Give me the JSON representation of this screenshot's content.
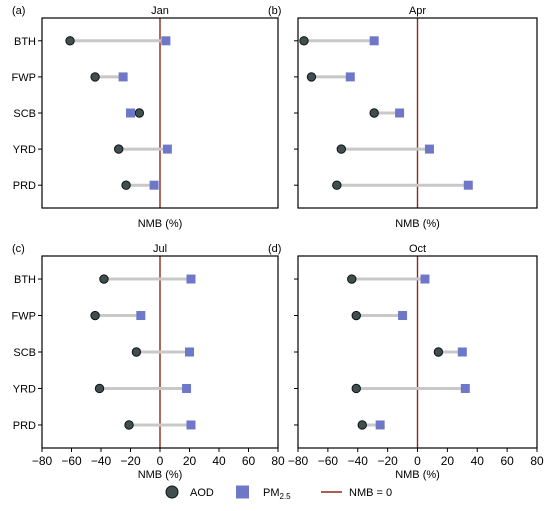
{
  "chart_data": {
    "type": "dumbbell",
    "categories": [
      "BTH",
      "FWP",
      "SCB",
      "YRD",
      "PRD"
    ],
    "xlim": [
      -80,
      80
    ],
    "xticks": [
      -80,
      -60,
      -40,
      -20,
      0,
      20,
      40,
      60,
      80
    ],
    "xlabel": "NMB (%)",
    "reference_line": 0,
    "colors": {
      "aod": "#3f4f4f",
      "aod_edge": "#111111",
      "pm": "#6f77c8",
      "connector": "#c8c8c8",
      "ref": "#8b2c1a"
    },
    "panels": [
      {
        "label": "(a)",
        "title": "Jan",
        "aod": [
          -61,
          -44,
          -14,
          -28,
          -23
        ],
        "pm": [
          4,
          -25,
          -20,
          5,
          -4
        ]
      },
      {
        "label": "(b)",
        "title": "Apr",
        "aod": [
          -76,
          -71,
          -29,
          -51,
          -54
        ],
        "pm": [
          -29,
          -45,
          -12,
          8,
          34
        ]
      },
      {
        "label": "(c)",
        "title": "Jul",
        "aod": [
          -38,
          -44,
          -16,
          -41,
          -21
        ],
        "pm": [
          21,
          -13,
          20,
          18,
          21
        ]
      },
      {
        "label": "(d)",
        "title": "Oct",
        "aod": [
          -44,
          -41,
          14,
          -41,
          -37
        ],
        "pm": [
          5,
          -10,
          30,
          32,
          -25
        ]
      }
    ],
    "legend": [
      {
        "key": "aod",
        "label": "AOD",
        "marker": "circle"
      },
      {
        "key": "pm",
        "label": "PM",
        "label_sub": "2.5",
        "marker": "square"
      },
      {
        "key": "ref",
        "label": "NMB = 0",
        "marker": "line"
      }
    ]
  }
}
